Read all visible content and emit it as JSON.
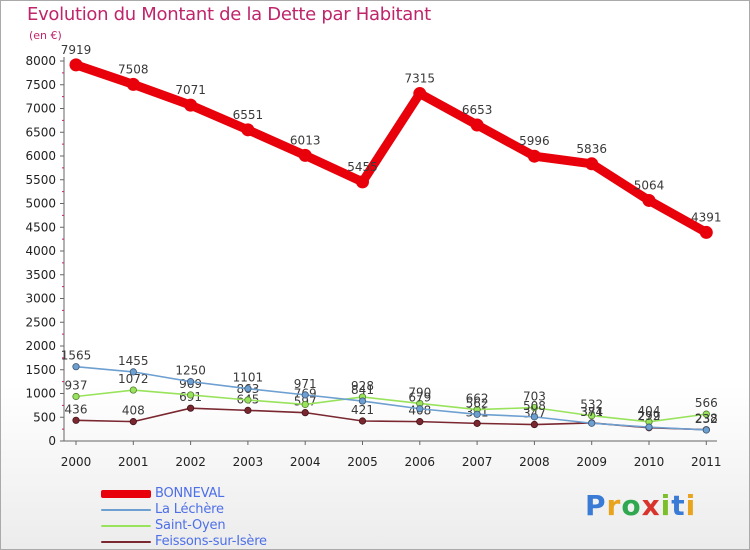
{
  "title": "Evolution du Montant de la Dette par Habitant",
  "unit": "(en €)",
  "logo": {
    "letters": [
      "P",
      "r",
      "o",
      "x",
      "i",
      "t",
      "i"
    ],
    "colors": [
      "#3a7bd5",
      "#e8a31f",
      "#2fa84f",
      "#d8342c",
      "#7bbf2a",
      "#3a7bd5",
      "#e8a31f"
    ]
  },
  "chart_data": {
    "type": "line",
    "title": "Evolution du Montant de la Dette par Habitant",
    "ylabel": "(en €)",
    "xlabel": "",
    "x": [
      "2000",
      "2001",
      "2002",
      "2003",
      "2004",
      "2005",
      "2006",
      "2007",
      "2008",
      "2009",
      "2010",
      "2011"
    ],
    "ylim": [
      0,
      8000
    ],
    "yticks": [
      "0",
      "500",
      "1000",
      "1500",
      "2000",
      "2500",
      "3000",
      "3500",
      "4000",
      "4500",
      "5000",
      "5500",
      "6000",
      "6500",
      "7000",
      "7500",
      "8000"
    ],
    "grid": false,
    "legend": "bottom-left",
    "series": [
      {
        "name": "BONNEVAL",
        "color": "#e8000b",
        "values": [
          7919,
          7508,
          7071,
          6551,
          6013,
          5455,
          7315,
          6653,
          5996,
          5836,
          5064,
          4391
        ],
        "labels": [
          "7919",
          "7508",
          "7071",
          "6551",
          "6013",
          "5455",
          "7315",
          "6653",
          "5996",
          "5836",
          "5064",
          "4391"
        ]
      },
      {
        "name": "La Léchère",
        "color": "#6d9fd1",
        "values": [
          1565,
          1455,
          1250,
          1101,
          971,
          841,
          679,
          562,
          508,
          374,
          292,
          232
        ],
        "labels": [
          "1565",
          "1455",
          "1250",
          "1101",
          "971",
          "841",
          "679",
          "562",
          "508",
          "374",
          "292",
          "232"
        ]
      },
      {
        "name": "Saint-Oyen",
        "color": "#98e35b",
        "values": [
          937,
          1072,
          969,
          863,
          769,
          928,
          790,
          662,
          703,
          532,
          404,
          566
        ],
        "labels": [
          "937",
          "1072",
          "969",
          "863",
          "769",
          "928",
          "790",
          "662",
          "703",
          "532",
          "404",
          "566"
        ]
      },
      {
        "name": "Feissons-sur-Isère",
        "color": "#7a2730",
        "values": [
          436,
          408,
          691,
          645,
          597,
          421,
          408,
          371,
          347,
          381,
          279,
          238
        ],
        "labels": [
          "436",
          "408",
          "691",
          "645",
          "597",
          "421",
          "408",
          "371",
          "347",
          "381",
          "279",
          "238"
        ]
      }
    ]
  }
}
